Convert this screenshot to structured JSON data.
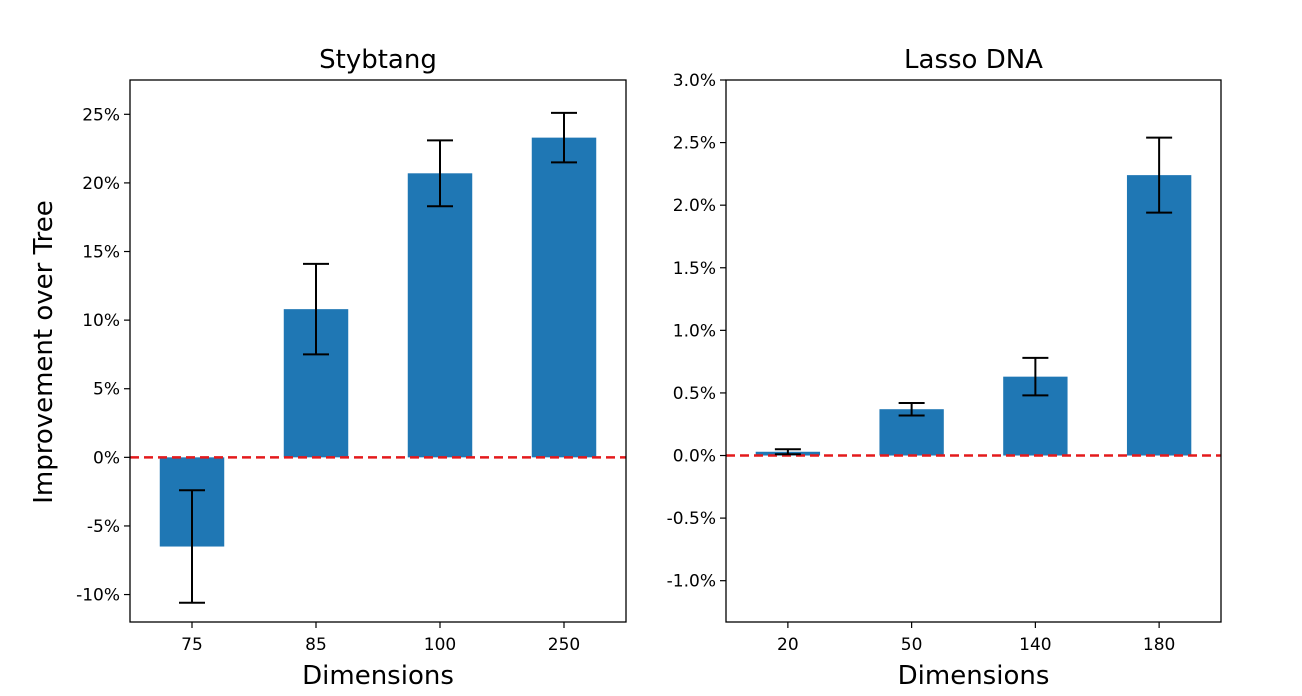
{
  "figure": {
    "shared_ylabel": "Improvement over Tree"
  },
  "chart_data": [
    {
      "type": "bar",
      "title": "Stybtang",
      "xlabel": "Dimensions",
      "ylabel": "Improvement over Tree",
      "categories": [
        "75",
        "85",
        "100",
        "250"
      ],
      "values": [
        -6.5,
        10.8,
        20.7,
        23.3
      ],
      "errors": [
        4.1,
        3.3,
        2.4,
        1.8
      ],
      "ylim": [
        -12,
        27.5
      ],
      "yticks": [
        -10,
        -5,
        0,
        5,
        10,
        15,
        20,
        25
      ],
      "ytick_labels": [
        "-10%",
        "-5%",
        "0%",
        "5%",
        "10%",
        "15%",
        "20%",
        "25%"
      ],
      "baseline": 0,
      "bar_color": "#1f77b4",
      "baseline_color": "#e41a1c",
      "grid": false
    },
    {
      "type": "bar",
      "title": "Lasso DNA",
      "xlabel": "Dimensions",
      "ylabel": "",
      "categories": [
        "20",
        "50",
        "140",
        "180"
      ],
      "values": [
        0.03,
        0.37,
        0.63,
        2.24
      ],
      "errors": [
        0.02,
        0.05,
        0.15,
        0.3
      ],
      "ylim": [
        -1.33,
        3.0
      ],
      "yticks": [
        -1.0,
        -0.5,
        0.0,
        0.5,
        1.0,
        1.5,
        2.0,
        2.5,
        3.0
      ],
      "ytick_labels": [
        "-1.0%",
        "-0.5%",
        "0.0%",
        "0.5%",
        "1.0%",
        "1.5%",
        "2.0%",
        "2.5%",
        "3.0%"
      ],
      "baseline": 0,
      "bar_color": "#1f77b4",
      "baseline_color": "#e41a1c",
      "grid": false
    }
  ]
}
